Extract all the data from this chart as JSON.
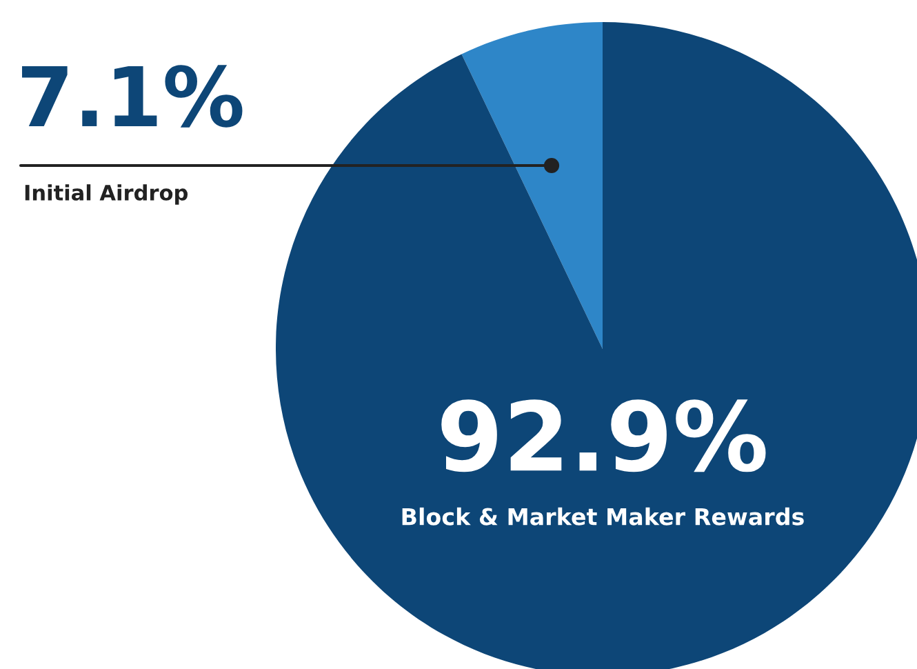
{
  "chart_data": {
    "type": "pie",
    "categories": [
      "Initial Airdrop",
      "Block & Market Maker Rewards"
    ],
    "values": [
      7.1,
      92.9
    ],
    "colors": [
      "#2e86c8",
      "#0d4677"
    ],
    "value_labels": [
      "7.1%",
      "92.9%"
    ],
    "legend": false
  }
}
